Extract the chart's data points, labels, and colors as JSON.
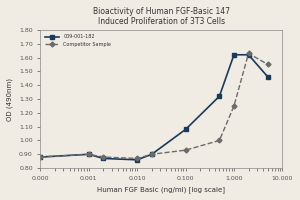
{
  "title_line1": "Bioactivity of Human FGF-Basic 147",
  "title_line2": "Induced Proliferation of 3T3 Cells",
  "xlabel": "Human FGF Basic (ng/ml) [log scale]",
  "ylabel": "OD (490nm)",
  "legend_line1": "009-001-182",
  "legend_line2": "Competitor Sample",
  "bg_color": "#f0ece4",
  "line1_color": "#1a3a5c",
  "line2_color": "#6b6b6b",
  "x_data": [
    0.0001,
    0.001,
    0.002,
    0.01,
    0.02,
    0.1,
    0.5,
    1.0,
    2.0,
    5.0
  ],
  "y1_data": [
    0.88,
    0.9,
    0.87,
    0.86,
    0.9,
    1.08,
    1.32,
    1.62,
    1.62,
    1.46
  ],
  "y2_data": [
    0.88,
    0.9,
    0.88,
    0.87,
    0.9,
    0.93,
    1.0,
    1.25,
    1.63,
    1.55
  ],
  "ylim_min": 0.8,
  "ylim_max": 1.8,
  "xlim_min": 0.0001,
  "xlim_max": 10.0
}
